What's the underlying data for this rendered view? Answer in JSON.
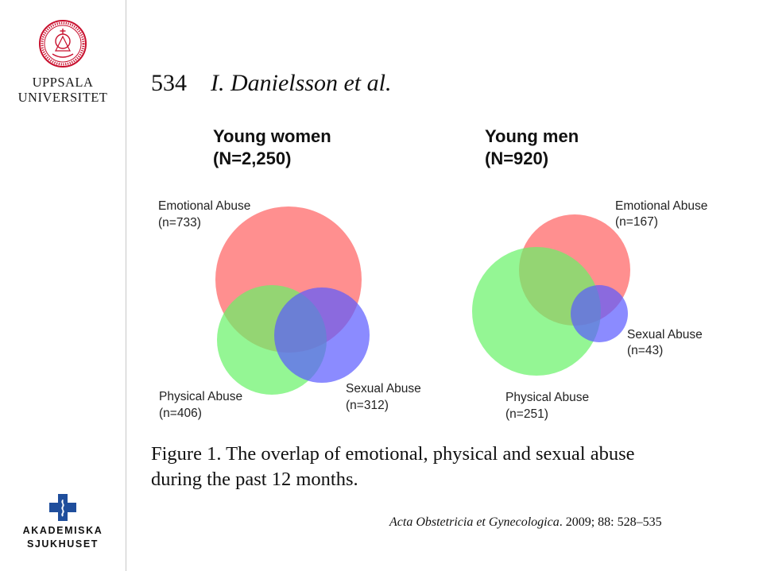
{
  "sidebar": {
    "logo_top": {
      "icon": "university-seal-icon",
      "line1": "UPPSALA",
      "line2": "UNIVERSITET",
      "color": "#c8102e"
    },
    "logo_bottom": {
      "icon": "medical-cross-icon",
      "line1": "AKADEMISKA",
      "line2": "SJUKHUSET",
      "color": "#1f4e9c"
    }
  },
  "header": {
    "page_number": "534",
    "authors": "I. Danielsson et al."
  },
  "figure": {
    "women": {
      "title_line1": "Young women",
      "title_line2": "(N=2,250)",
      "emotional": {
        "name": "Emotional Abuse",
        "count": "(n=733)"
      },
      "physical": {
        "name": "Physical Abuse",
        "count": "(n=406)"
      },
      "sexual": {
        "name": "Sexual Abuse",
        "count": "(n=312)"
      }
    },
    "men": {
      "title_line1": "Young men",
      "title_line2": "(N=920)",
      "emotional": {
        "name": "Emotional Abuse",
        "count": "(n=167)"
      },
      "physical": {
        "name": "Physical Abuse",
        "count": "(n=251)"
      },
      "sexual": {
        "name": "Sexual Abuse",
        "count": "(n=43)"
      }
    },
    "colors": {
      "emotional": "#ff6a6a",
      "physical": "#66f266",
      "sexual": "#5a5aff"
    }
  },
  "caption": {
    "line1": "Figure 1. The overlap of emotional, physical and sexual abuse",
    "line2": "during the past 12 months."
  },
  "citation": {
    "journal": "Acta Obstetricia et Gynecologica",
    "details": ". 2009; 88: 528–535"
  }
}
